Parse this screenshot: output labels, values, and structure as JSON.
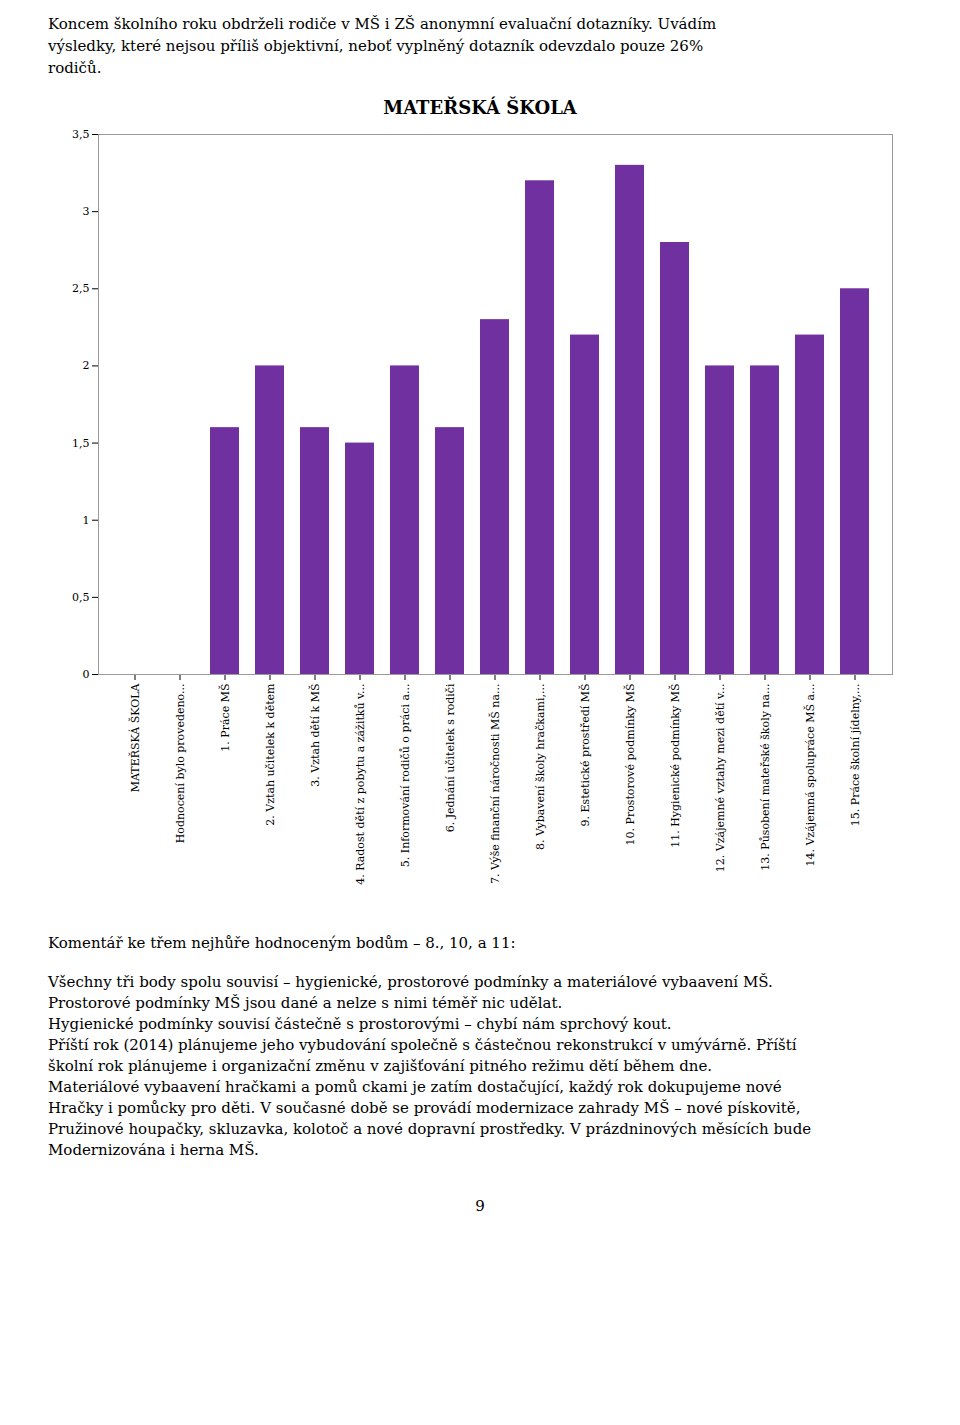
{
  "header_lines": [
    "Koncem školního roku obdrželi rodiče v MŠ i ZŠ anonymní evaluační dotazníky. Uvádím",
    "výsledky, které nejsou příliš objektivní, neboť vyplněný dotazník odevzdalo pouze 26%",
    "rodičů."
  ],
  "chart_data": {
    "type": "bar",
    "title": "MATEŘSKÁ ŠKOLA",
    "categories": [
      "MATEŘSKÁ ŠKOLA",
      "Hodnocení bylo provedeno...",
      "1. Práce MŠ",
      "2. Vztah učitelek k dětem",
      "3. Vztah dětí k MŠ",
      "4. Radost dětí z pobytu a zážitků v...",
      "5. Informování rodičů o práci a...",
      "6. Jednání učitelek s rodiči",
      "7. Výše finanční náročnosti MŠ na...",
      "8. Vybavení školy hračkami,...",
      "9. Estetické prostředí MŠ",
      "10. Prostorové podmínky MŠ",
      "11. Hygienické podmínky MŠ",
      "12. Vzájemné vztahy mezi dětí v...",
      "13. Působení mateřské školy na...",
      "14. Vzájemná spolupráce MŠ a...",
      "15. Práce školní jídelny,..."
    ],
    "values": [
      0,
      0,
      1.6,
      2.0,
      1.6,
      1.5,
      2.0,
      1.6,
      2.3,
      3.2,
      2.2,
      3.3,
      2.8,
      2.0,
      2.0,
      2.2,
      2.5
    ],
    "color": "#7030a0",
    "ylim": [
      0,
      3.5
    ],
    "yticks": [
      0,
      {
        "value": 0.5,
        "label": "0,5"
      },
      1,
      {
        "value": 1.5,
        "label": "1,5"
      },
      2,
      {
        "value": 2.5,
        "label": "2,5"
      },
      3,
      {
        "value": 3.5,
        "label": "3,5"
      }
    ],
    "grid": false
  },
  "comment_title": "Komentář ke třem nejhůře hodnoceným bodům – 8., 10, a 11:",
  "comment_lines": [
    "Všechny tři body spolu souvisí – hygienické, prostorové podmínky a materiálové vybaavení MŠ.",
    "Prostorové podmínky MŠ jsou dané a nelze s nimi téměř nic udělat.",
    "Hygienické podmínky souvisí částečně s prostorovými – chybí nám sprchový kout.",
    "Příští rok (2014) plánujeme jeho vybudování společně s částečnou rekonstrukcí v umývárně. Příští",
    "školní rok plánujeme i organizační změnu v zajišťování pitného režimu dětí během dne.",
    "Materiálové vybaavení hračkami a pomů ckami je zatím dostačující, každý rok dokupujeme nové",
    "Hračky i pomůcky pro děti. V současné době se provádí modernizace zahrady MŠ – nové pískovitě,",
    "Pružinové houpačky, skluzavka, kolotoč a nové dopravní prostředky. V prázdninových měsících bude",
    "Modernizována i herna MŠ."
  ],
  "page_number": "9"
}
